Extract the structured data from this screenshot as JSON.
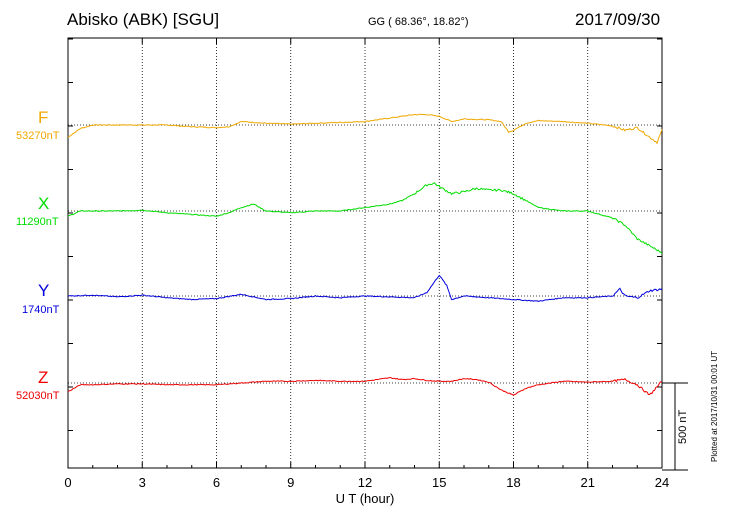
{
  "header": {
    "title": "Abisko (ABK)  [SGU]",
    "coords": "GG ( 68.36°,  18.82°)",
    "date": "2017/09/30"
  },
  "plotted_note": "Plotted at 2017/10/31 00:01  UT",
  "scale_label": "500 nT",
  "colors": {
    "F": "#f0a800",
    "X": "#00dd00",
    "Y": "#0000dd",
    "Z": "#ee0000"
  },
  "chart_data": {
    "type": "line",
    "xlabel": "U T (hour)",
    "xlim": [
      0,
      24
    ],
    "xticks": [
      "0",
      "3",
      "6",
      "9",
      "12",
      "15",
      "18",
      "21",
      "24"
    ],
    "grid": true,
    "scale_bar_nT": 500,
    "series": [
      {
        "name": "F",
        "baseline_label": "53270nT",
        "x": [
          0,
          0.5,
          1,
          2,
          3,
          4,
          5,
          6,
          6.5,
          7,
          8,
          9,
          10,
          11,
          12,
          12.5,
          13,
          13.5,
          14,
          14.5,
          15,
          15.5,
          16,
          17,
          17.5,
          17.8,
          18,
          18.5,
          19,
          20,
          21,
          22,
          22.5,
          23,
          23.5,
          23.8,
          24
        ],
        "y": [
          -70,
          -20,
          0,
          0,
          0,
          0,
          -10,
          -15,
          -10,
          20,
          10,
          5,
          10,
          15,
          20,
          30,
          40,
          50,
          60,
          60,
          50,
          20,
          35,
          30,
          20,
          -40,
          -30,
          10,
          25,
          20,
          10,
          -5,
          -30,
          -15,
          -70,
          -100,
          -30
        ]
      },
      {
        "name": "X",
        "baseline_label": "11290nT",
        "x": [
          0,
          0.5,
          1,
          2,
          3,
          4,
          5,
          6,
          6.5,
          7,
          7.5,
          8,
          9,
          10,
          11,
          12,
          13,
          13.5,
          14,
          14.5,
          14.8,
          15,
          15.5,
          16,
          16.5,
          17,
          17.5,
          18,
          18.5,
          19,
          20,
          21,
          22,
          22.5,
          23,
          23.5,
          24
        ],
        "y": [
          -30,
          0,
          0,
          0,
          5,
          -10,
          -20,
          -30,
          -10,
          20,
          40,
          0,
          -10,
          0,
          0,
          20,
          40,
          60,
          100,
          150,
          160,
          140,
          100,
          110,
          130,
          120,
          120,
          100,
          60,
          20,
          0,
          0,
          -40,
          -80,
          -160,
          -200,
          -240
        ]
      },
      {
        "name": "Y",
        "baseline_label": "1740nT",
        "x": [
          0,
          1,
          2,
          3,
          4,
          5,
          6,
          7,
          8,
          9,
          10,
          11,
          12,
          13,
          14,
          14.5,
          14.8,
          15,
          15.3,
          15.5,
          16,
          17,
          18,
          19,
          20,
          21,
          22,
          22.3,
          22.5,
          23,
          23.5,
          24
        ],
        "y": [
          0,
          5,
          -5,
          5,
          -10,
          -20,
          -15,
          10,
          -20,
          -15,
          0,
          -10,
          0,
          -5,
          -10,
          20,
          80,
          120,
          60,
          -20,
          0,
          -10,
          -20,
          -30,
          -10,
          -10,
          0,
          40,
          0,
          -10,
          30,
          40
        ]
      },
      {
        "name": "Z",
        "baseline_label": "52030nT",
        "x": [
          0,
          0.5,
          1,
          2,
          3,
          4,
          5,
          6,
          7,
          8,
          9,
          10,
          11,
          12,
          12.5,
          13,
          13.5,
          14,
          14.5,
          15,
          15.5,
          16,
          16.5,
          17,
          17.5,
          18,
          18.5,
          19,
          20,
          21,
          22,
          22.5,
          23,
          23.5,
          24
        ],
        "y": [
          -50,
          -10,
          -10,
          -5,
          -5,
          -10,
          -10,
          -10,
          0,
          10,
          10,
          15,
          10,
          10,
          20,
          30,
          20,
          25,
          15,
          10,
          10,
          25,
          20,
          5,
          -40,
          -70,
          -30,
          -10,
          10,
          5,
          10,
          20,
          -10,
          -70,
          10
        ]
      }
    ]
  }
}
